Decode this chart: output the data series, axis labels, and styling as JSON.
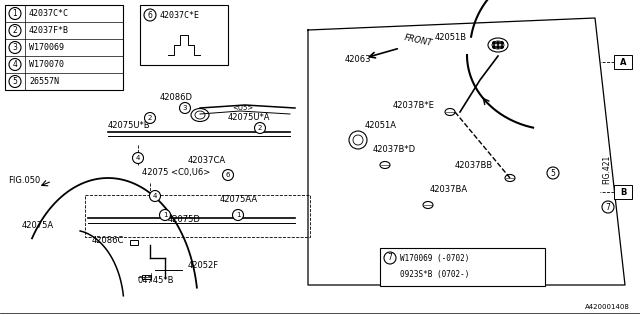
{
  "bg_color": "#ffffff",
  "line_color": "#000000",
  "text_color": "#000000",
  "legend_items": [
    [
      "1",
      "42037C*C"
    ],
    [
      "2",
      "42037F*B"
    ],
    [
      "3",
      "W170069"
    ],
    [
      "4",
      "W170070"
    ],
    [
      "5",
      "26557N"
    ]
  ],
  "callout_label": "42037C*E",
  "callout_num": "6",
  "bottom_line1": "W170069 (-0702)",
  "bottom_line2": "0923S*B (0702-)",
  "fig050": "FIG.050",
  "fig421": "FIG.421",
  "bottom_code": "A420001408"
}
